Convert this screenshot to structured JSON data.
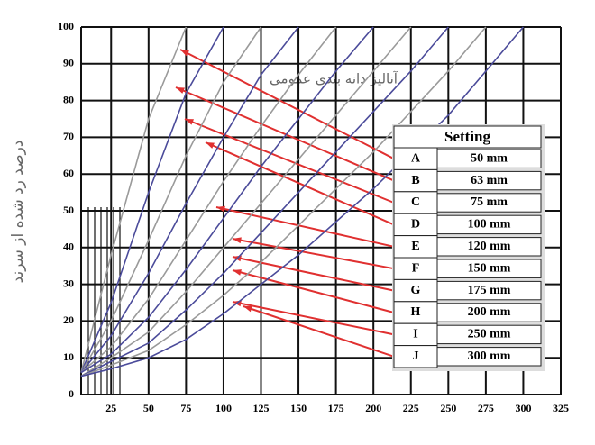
{
  "chart_data": {
    "type": "line",
    "title": "آنالیز دانه بندی عمومی",
    "y_label": "درصد رد شده از سرند",
    "x": [
      5,
      25,
      50,
      75,
      100,
      125,
      150,
      175,
      200,
      225,
      250,
      275,
      300
    ],
    "series": [
      {
        "color": "#9a9a9a",
        "values": [
          6,
          38,
          75,
          100,
          null,
          null,
          null,
          null,
          null,
          null,
          null,
          null,
          null
        ]
      },
      {
        "color": "#4b4b9a",
        "values": [
          6,
          25,
          55,
          82,
          100,
          null,
          null,
          null,
          null,
          null,
          null,
          null,
          null
        ]
      },
      {
        "color": "#9a9a9a",
        "values": [
          6,
          20,
          42,
          65,
          85,
          100,
          null,
          null,
          null,
          null,
          null,
          null,
          null
        ]
      },
      {
        "color": "#4b4b9a",
        "values": [
          6,
          16,
          33,
          52,
          70,
          87,
          100,
          null,
          null,
          null,
          null,
          null,
          null
        ]
      },
      {
        "color": "#9a9a9a",
        "values": [
          6,
          13,
          26,
          42,
          58,
          73,
          87,
          100,
          null,
          null,
          null,
          null,
          null
        ]
      },
      {
        "color": "#4b4b9a",
        "values": [
          6,
          11,
          21,
          34,
          48,
          62,
          75,
          88,
          100,
          null,
          null,
          null,
          null
        ]
      },
      {
        "color": "#9a9a9a",
        "values": [
          5,
          10,
          17,
          28,
          40,
          52,
          64,
          76,
          88,
          100,
          null,
          null,
          null
        ]
      },
      {
        "color": "#4b4b9a",
        "values": [
          5,
          9,
          14,
          23,
          33,
          44,
          55,
          66,
          77,
          88,
          100,
          null,
          null
        ]
      },
      {
        "color": "#9a9a9a",
        "values": [
          5,
          8,
          12,
          19,
          27,
          36,
          46,
          56,
          66,
          77,
          88,
          100,
          null
        ]
      },
      {
        "color": "#4b4b9a",
        "values": [
          5,
          7,
          10,
          15,
          22,
          30,
          38,
          47,
          56,
          66,
          76,
          88,
          100
        ]
      }
    ],
    "xlim": [
      5,
      325
    ],
    "xticks": [
      25,
      50,
      75,
      100,
      125,
      150,
      175,
      200,
      225,
      250,
      275,
      300,
      325
    ],
    "ylim": [
      0,
      100
    ],
    "yticks": [
      0,
      10,
      20,
      30,
      40,
      50,
      60,
      70,
      80,
      90,
      100
    ],
    "grid": true
  },
  "settings_table": {
    "title": "Setting",
    "rows": [
      [
        "A",
        "50 mm"
      ],
      [
        "B",
        "63 mm"
      ],
      [
        "C",
        "75 mm"
      ],
      [
        "D",
        "100 mm"
      ],
      [
        "E",
        "120 mm"
      ],
      [
        "F",
        "150 mm"
      ],
      [
        "G",
        "175 mm"
      ],
      [
        "H",
        "200 mm"
      ],
      [
        "I",
        "250 mm"
      ],
      [
        "J",
        "300 mm"
      ]
    ]
  }
}
